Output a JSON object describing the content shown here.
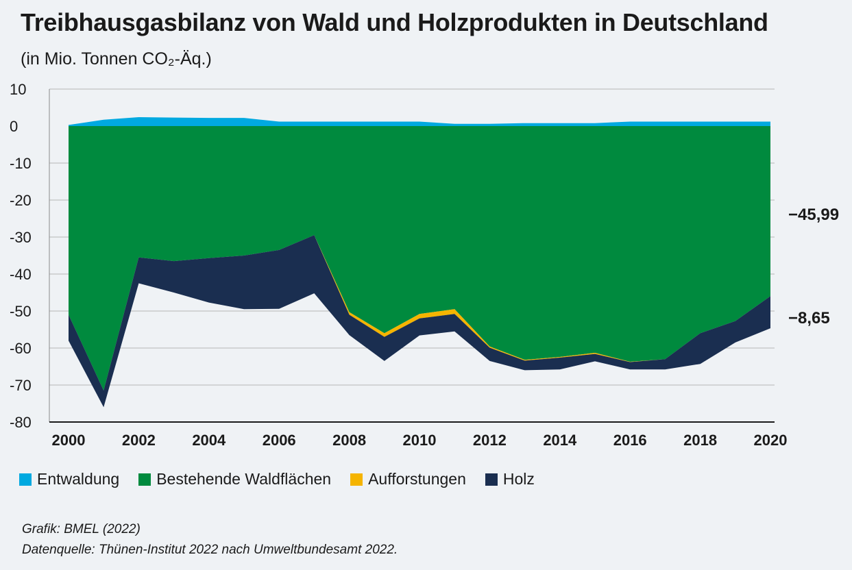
{
  "title": "Treibhausgasbilanz von Wald und Holzprodukten in Deutschland",
  "subtitle": "(in Mio. Tonnen CO₂-Äq.)",
  "colors": {
    "entwaldung": "#00a9e0",
    "wald": "#008a3e",
    "aufforstung": "#f5b400",
    "holz": "#1a2e50",
    "grid": "#b5b5b5"
  },
  "chart_data": {
    "type": "area",
    "stacked": true,
    "x": [
      2000,
      2001,
      2002,
      2003,
      2004,
      2005,
      2006,
      2007,
      2008,
      2009,
      2010,
      2011,
      2012,
      2013,
      2014,
      2015,
      2016,
      2017,
      2018,
      2019,
      2020
    ],
    "xticks": [
      "2000",
      "2002",
      "2004",
      "2006",
      "2008",
      "2010",
      "2012",
      "2014",
      "2016",
      "2018",
      "2020"
    ],
    "yticks": [
      "10",
      "0",
      "-10",
      "-20",
      "-30",
      "-40",
      "-50",
      "-60",
      "-70",
      "-80"
    ],
    "ylim": [
      -80,
      10
    ],
    "series": [
      {
        "name": "Entwaldung",
        "values": [
          0.3,
          1.7,
          2.4,
          2.3,
          2.2,
          2.2,
          1.2,
          1.2,
          1.2,
          1.2,
          1.2,
          0.6,
          0.6,
          0.8,
          0.8,
          0.8,
          1.2,
          1.2,
          1.2,
          1.2,
          1.2
        ]
      },
      {
        "name": "Bestehende Waldflächen",
        "values": [
          -51.0,
          -71.5,
          -35.5,
          -36.5,
          -35.7,
          -35.0,
          -33.5,
          -29.5,
          -50.3,
          -56.0,
          -50.8,
          -49.5,
          -59.6,
          -63.2,
          -62.4,
          -61.3,
          -63.7,
          -63.0,
          -56.0,
          -52.7,
          -45.99
        ]
      },
      {
        "name": "Aufforstungen",
        "values": [
          0,
          0,
          0,
          0,
          0,
          0,
          0,
          0,
          -0.7,
          -1.0,
          -1.2,
          -1.3,
          -0.3,
          -0.2,
          -0.2,
          -0.3,
          -0.1,
          0,
          0,
          0,
          0
        ]
      },
      {
        "name": "Holz",
        "values": [
          -7.0,
          -4.5,
          -7.0,
          -8.5,
          -12.0,
          -14.5,
          -15.9,
          -15.7,
          -5.5,
          -6.5,
          -4.6,
          -4.7,
          -3.6,
          -2.6,
          -3.2,
          -2.0,
          -2.0,
          -2.8,
          -8.3,
          -5.8,
          -8.65
        ]
      }
    ],
    "annotations": [
      "−45,99",
      "−8,65"
    ]
  },
  "legend": [
    {
      "label": "Entwaldung",
      "color": "#00a9e0"
    },
    {
      "label": "Bestehende Waldflächen",
      "color": "#008a3e"
    },
    {
      "label": "Aufforstungen",
      "color": "#f5b400"
    },
    {
      "label": "Holz",
      "color": "#1a2e50"
    }
  ],
  "source_lines": [
    "Grafik: BMEL (2022)",
    "Datenquelle: Thünen-Institut 2022 nach Umweltbundesamt 2022."
  ]
}
